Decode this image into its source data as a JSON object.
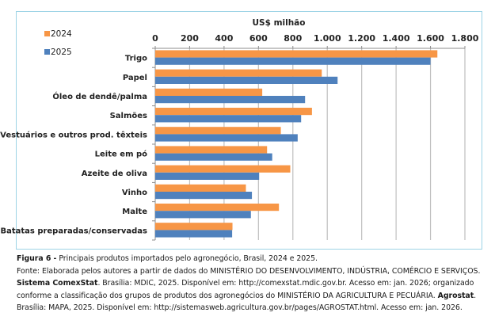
{
  "chart_data": {
    "type": "bar",
    "orientation": "horizontal",
    "axis_title": "US$ milhão",
    "xlim": [
      0,
      1800
    ],
    "x_ticks": [
      0,
      200,
      400,
      600,
      800,
      1000,
      1200,
      1400,
      1600,
      1800
    ],
    "x_tick_labels": [
      "0",
      "200",
      "400",
      "600",
      "800",
      "1.000",
      "1.200",
      "1.400",
      "1.600",
      "1.800"
    ],
    "grid": true,
    "legend_position": "top-left",
    "categories": [
      "Trigo",
      "Papel",
      "Óleo de dendê/palma",
      "Salmões",
      "Vestuários e outros prod. têxteis",
      "Leite em pó",
      "Azeite de oliva",
      "Vinho",
      "Malte",
      "Batatas preparadas/conservadas"
    ],
    "series": [
      {
        "name": "2024",
        "color": "#f79646",
        "values": [
          1640,
          968,
          622,
          911,
          730,
          650,
          785,
          527,
          719,
          449
        ]
      },
      {
        "name": "2025",
        "color": "#4f81bd",
        "values": [
          1600,
          1060,
          871,
          848,
          828,
          680,
          604,
          562,
          556,
          447
        ]
      }
    ]
  },
  "caption": {
    "figure_label": "Figura 6 -",
    "figure_title": " Principais produtos importados pelo agronegócio, Brasil, 2024 e 2025.",
    "line2": "Fonte: Elaborada pelos autores a partir de dados do MINISTÉRIO DO DESENVOLVIMENTO, INDÚSTRIA, COMÉRCIO E SERVIÇOS.",
    "line3_bold": "Sistema ComexStat",
    "line3_rest": ". Brasília: MDIC, 2025. Disponível em: http://comexstat.mdic.gov.br. Acesso em: jan. 2026; organizado",
    "line4_rest": "conforme a classificação dos grupos de produtos dos agronegócios do MINISTÉRIO DA AGRICULTURA E PECUÁRIA. ",
    "line4_bold": "Agrostat",
    "line4_end": ".",
    "line5": "Brasília: MAPA, 2025. Disponível em: http://sistemasweb.agricultura.gov.br/pages/AGROSTAT.html. Acesso em: jan. 2026."
  }
}
